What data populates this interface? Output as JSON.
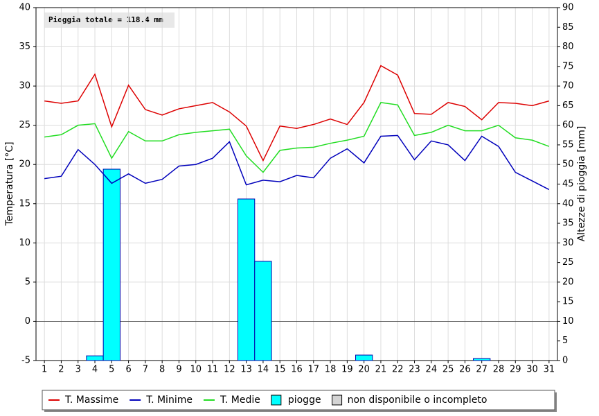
{
  "chart_data": {
    "type": "combo",
    "annotation": "Pioggia totale = 118.4 mm",
    "ylabel": "Temperatura [°C]",
    "y2label": "Altezze di pioggia [mm]",
    "categories": [
      "1",
      "2",
      "3",
      "4",
      "5",
      "6",
      "7",
      "8",
      "9",
      "10",
      "11",
      "12",
      "13",
      "14",
      "15",
      "16",
      "17",
      "18",
      "19",
      "20",
      "21",
      "22",
      "23",
      "24",
      "25",
      "26",
      "27",
      "28",
      "29",
      "30",
      "31"
    ],
    "ylim": [
      -5,
      40
    ],
    "yticks": [
      -5,
      0,
      5,
      10,
      15,
      20,
      25,
      30,
      35,
      40
    ],
    "y2lim": [
      0,
      90
    ],
    "y2ticks": [
      0,
      5,
      10,
      15,
      20,
      25,
      30,
      35,
      40,
      45,
      50,
      55,
      60,
      65,
      70,
      75,
      80,
      85,
      90
    ],
    "grid": true,
    "series": [
      {
        "name": "T. Massime",
        "type": "line",
        "color": "#dd0000",
        "values": [
          28.1,
          27.8,
          28.1,
          31.5,
          24.8,
          30.1,
          27.0,
          26.3,
          27.1,
          27.5,
          27.9,
          26.7,
          24.9,
          20.5,
          24.9,
          24.6,
          25.1,
          25.8,
          25.1,
          27.9,
          32.6,
          31.4,
          26.5,
          26.4,
          27.9,
          27.4,
          25.7,
          27.9,
          27.8,
          27.5,
          28.1
        ]
      },
      {
        "name": "T. Minime",
        "type": "line",
        "color": "#0000bb",
        "values": [
          18.2,
          18.5,
          21.9,
          20.0,
          17.6,
          18.8,
          17.6,
          18.1,
          19.8,
          20.0,
          20.8,
          22.9,
          17.4,
          18.0,
          17.8,
          18.6,
          18.3,
          20.8,
          22.0,
          20.2,
          23.6,
          23.7,
          20.6,
          23.0,
          22.5,
          20.5,
          23.6,
          22.3,
          19.0,
          17.9,
          16.8
        ]
      },
      {
        "name": "T. Medie",
        "type": "line",
        "color": "#22dd22",
        "values": [
          23.5,
          23.8,
          25.0,
          25.2,
          20.8,
          24.2,
          23.0,
          23.0,
          23.8,
          24.1,
          24.3,
          24.5,
          21.1,
          19.0,
          21.8,
          22.1,
          22.2,
          22.7,
          23.1,
          23.6,
          27.9,
          27.6,
          23.7,
          24.1,
          25.0,
          24.3,
          24.3,
          25.0,
          23.4,
          23.1,
          22.3
        ]
      },
      {
        "name": "piogge",
        "type": "bar",
        "axis": "y2",
        "color": "#00ffff",
        "values": [
          0,
          0,
          0,
          1.2,
          48.8,
          0,
          0,
          0,
          0,
          0,
          0,
          0,
          41.2,
          25.3,
          0,
          0,
          0,
          0,
          0,
          1.4,
          0,
          0,
          0,
          0,
          0,
          0,
          0.5,
          0,
          0,
          0,
          0
        ]
      }
    ],
    "legend_extra": {
      "name": "non disponibile o incompleto",
      "color": "#d4d4d4"
    }
  }
}
